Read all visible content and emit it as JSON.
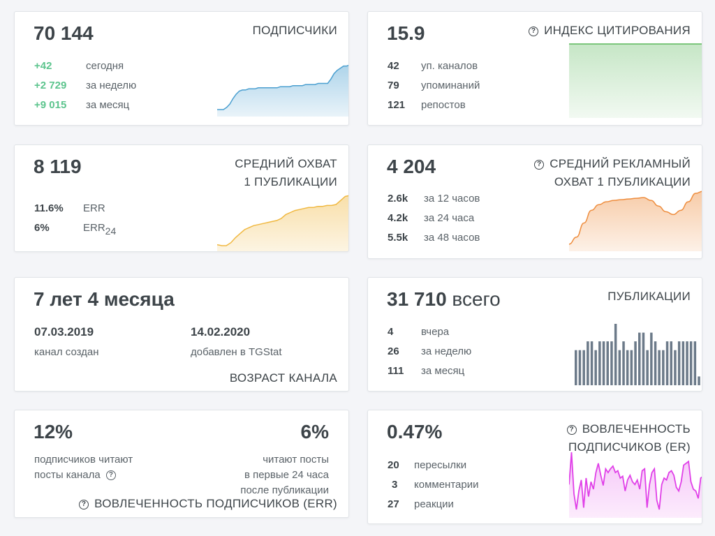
{
  "subscribers": {
    "value": "70 144",
    "title": "ПОДПИСЧИКИ",
    "rows": [
      {
        "v": "+42",
        "l": "сегодня"
      },
      {
        "v": "+2 729",
        "l": "за неделю"
      },
      {
        "v": "+9 015",
        "l": "за месяц"
      }
    ],
    "color": "#4a9fd0"
  },
  "citation": {
    "value": "15.9",
    "title": "ИНДЕКС ЦИТИРОВАНИЯ",
    "rows": [
      {
        "v": "42",
        "l": "уп. каналов"
      },
      {
        "v": "79",
        "l": "упоминаний"
      },
      {
        "v": "121",
        "l": "репостов"
      }
    ],
    "color": "#5cb85c"
  },
  "reach": {
    "value": "8 119",
    "title_line1": "СРЕДНИЙ ОХВАТ",
    "title_line2": "1 ПУБЛИКАЦИИ",
    "rows": [
      {
        "v": "11.6%",
        "l": "ERR"
      },
      {
        "v": "6%",
        "l": "ERR",
        "sub": "24"
      }
    ],
    "color": "#f0b840"
  },
  "ad_reach": {
    "value": "4 204",
    "title_line1": "СРЕДНИЙ РЕКЛАМНЫЙ",
    "title_line2": "ОХВАТ 1 ПУБЛИКАЦИИ",
    "rows": [
      {
        "v": "2.6k",
        "l": "за 12 часов"
      },
      {
        "v": "4.2k",
        "l": "за 24 часа"
      },
      {
        "v": "5.5k",
        "l": "за 48 часов"
      }
    ],
    "color": "#ee8c3c"
  },
  "age": {
    "value": "7 лет 4 месяца",
    "created_date": "07.03.2019",
    "created_label": "канал создан",
    "added_date": "14.02.2020",
    "added_label": "добавлен в TGStat",
    "title": "ВОЗРАСТ КАНАЛА"
  },
  "posts": {
    "value": "31 710",
    "value_suffix": " всего",
    "title": "ПУБЛИКАЦИИ",
    "rows": [
      {
        "v": "4",
        "l": "вчера"
      },
      {
        "v": "26",
        "l": "за неделю"
      },
      {
        "v": "111",
        "l": "за месяц"
      }
    ],
    "color": "#6c7a89"
  },
  "err": {
    "left_value": "12%",
    "left_line1": "подписчиков читают",
    "left_line2": "посты канала",
    "right_value": "6%",
    "right_line1": "читают посты",
    "right_line2": "в первые 24 часа",
    "right_line3": "после публикации",
    "title": "ВОВЛЕЧЕННОСТЬ ПОДПИСЧИКОВ (ERR)"
  },
  "er": {
    "value": "0.47%",
    "title_line1": "ВОВЛЕЧЕННОСТЬ",
    "title_line2": "ПОДПИСЧИКОВ (ER)",
    "rows": [
      {
        "v": "20",
        "l": "пересылки"
      },
      {
        "v": "3",
        "l": "комментарии"
      },
      {
        "v": "27",
        "l": "реакции"
      }
    ],
    "color": "#e040e8"
  },
  "icons": {
    "question": "question-circle-icon"
  },
  "chart_data": [
    {
      "type": "area",
      "name": "subscribers-sparkline",
      "values": [
        0,
        0,
        0,
        2,
        5,
        10,
        14,
        17,
        18,
        18,
        19,
        19,
        19,
        20,
        20,
        20,
        20,
        20,
        20,
        20,
        21,
        21,
        21,
        21,
        22,
        22,
        22,
        22,
        23,
        23,
        23,
        23,
        24,
        24,
        24,
        24,
        28,
        33,
        36,
        38,
        40,
        40,
        41
      ]
    },
    {
      "type": "area",
      "name": "citation-sparkline",
      "values": [
        100,
        100,
        100,
        100,
        100,
        100,
        100,
        100,
        100,
        100
      ]
    },
    {
      "type": "area",
      "name": "reach-sparkline",
      "values": [
        2,
        1,
        1,
        4,
        9,
        13,
        17,
        19,
        21,
        22,
        23,
        24,
        25,
        26,
        28,
        32,
        34,
        36,
        37,
        38,
        39,
        39,
        40,
        40,
        41,
        41,
        42,
        46,
        50,
        51
      ]
    },
    {
      "type": "area",
      "name": "ad-reach-sparkline",
      "values": [
        10,
        20,
        40,
        58,
        66,
        70,
        72,
        73,
        74,
        75,
        76,
        72,
        64,
        56,
        52,
        58,
        70,
        82,
        85
      ]
    },
    {
      "type": "bar",
      "name": "posts-bars",
      "values": [
        4,
        4,
        4,
        5,
        5,
        4,
        5,
        5,
        5,
        5,
        7,
        4,
        5,
        4,
        4,
        5,
        6,
        6,
        4,
        6,
        5,
        4,
        4,
        5,
        5,
        4,
        5,
        5,
        5,
        5,
        5,
        1
      ]
    },
    {
      "type": "area",
      "name": "er-sparkline",
      "values": [
        45,
        80,
        35,
        18,
        38,
        50,
        20,
        52,
        32,
        48,
        40,
        58,
        68,
        55,
        44,
        62,
        58,
        62,
        65,
        58,
        60,
        52,
        54,
        38,
        50,
        55,
        48,
        45,
        50,
        40,
        60,
        62,
        20,
        45,
        58,
        62,
        28,
        18,
        45,
        52,
        50,
        58,
        60,
        55,
        42,
        38,
        48,
        66,
        68,
        70,
        48,
        40,
        38,
        30,
        52,
        54
      ]
    }
  ]
}
